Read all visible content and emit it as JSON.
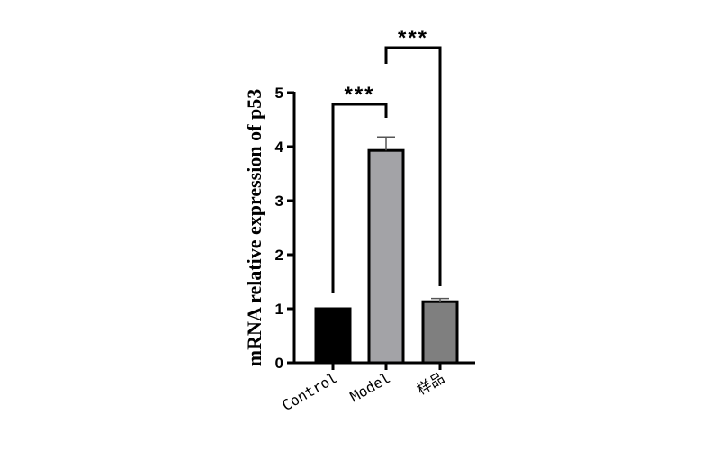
{
  "chart_data": {
    "type": "bar",
    "ylabel": "mRNA relative expression of  p53",
    "ylim": [
      0,
      5
    ],
    "yticks": [
      "0",
      "1",
      "2",
      "3",
      "4",
      "5"
    ],
    "categories": [
      "Control",
      "Model",
      "样品"
    ],
    "values": [
      1.0,
      3.93,
      1.13
    ],
    "errors": [
      0.0,
      0.25,
      0.06
    ],
    "colors": [
      "#000000",
      "#a3a3a7",
      "#7f7f7f"
    ],
    "significance": [
      {
        "from": 0,
        "to": 1,
        "label": "***"
      },
      {
        "from": 1,
        "to": 2,
        "label": "***"
      }
    ]
  }
}
